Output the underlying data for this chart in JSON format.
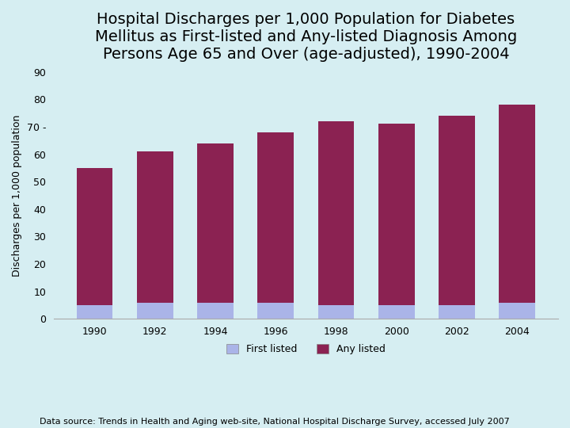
{
  "years": [
    "1990",
    "1992",
    "1994",
    "1996",
    "1998",
    "2000",
    "2002",
    "2004"
  ],
  "first_listed": [
    5,
    6,
    6,
    6,
    5,
    5,
    5,
    6
  ],
  "any_listed_total": [
    55,
    61,
    64,
    68,
    72,
    71,
    74,
    78
  ],
  "color_first": "#aab4e8",
  "color_any": "#8b2252",
  "bg_color": "#d6eef2",
  "title": "Hospital Discharges per 1,000 Population for Diabetes\nMellitus as First-listed and Any-listed Diagnosis Among\nPersons Age 65 and Over (age-adjusted), 1990-2004",
  "ylabel": "Discharges per 1,000 population",
  "ylim": [
    0,
    90
  ],
  "yticks": [
    0,
    10,
    20,
    30,
    40,
    50,
    60,
    70,
    80,
    90
  ],
  "ytick_labels": [
    "0",
    "10",
    "20",
    "30",
    "40",
    "50",
    "60",
    "70 -",
    "80",
    "90"
  ],
  "legend_first": "First listed",
  "legend_any": "Any listed",
  "footnote": "Data source: Trends in Health and Aging web-site, National Hospital Discharge Survey, accessed July 2007",
  "title_fontsize": 14,
  "ylabel_fontsize": 9,
  "tick_fontsize": 9,
  "legend_fontsize": 9,
  "footnote_fontsize": 8
}
